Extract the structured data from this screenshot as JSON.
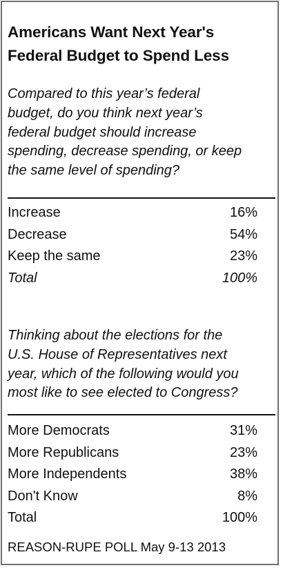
{
  "title": {
    "line1": "Americans Want Next Year's",
    "line2": "Federal Budget to Spend Less"
  },
  "question1": {
    "lines": [
      "Compared to this year’s federal",
      "budget, do you think next year’s",
      "federal budget should increase",
      "spending, decrease spending, or keep",
      "the same level of spending?"
    ],
    "rows": [
      {
        "label": "Increase",
        "value": "16%"
      },
      {
        "label": "Decrease",
        "value": "54%"
      },
      {
        "label": "Keep the same",
        "value": "23%"
      },
      {
        "label": "Total",
        "value": "100%"
      }
    ]
  },
  "question2": {
    "lines": [
      "Thinking about the elections for the",
      "U.S. House of Representatives next",
      "year, which of the following would you",
      "most like to see elected to Congress?"
    ],
    "rows": [
      {
        "label": "More Democrats",
        "value": "31%"
      },
      {
        "label": "More Republicans",
        "value": "23%"
      },
      {
        "label": "More Independents",
        "value": "38%"
      },
      {
        "label": "Don't Know",
        "value": "8%"
      },
      {
        "label": "Total",
        "value": "100%"
      }
    ]
  },
  "source": "REASON-RUPE POLL May 9-13 2013"
}
